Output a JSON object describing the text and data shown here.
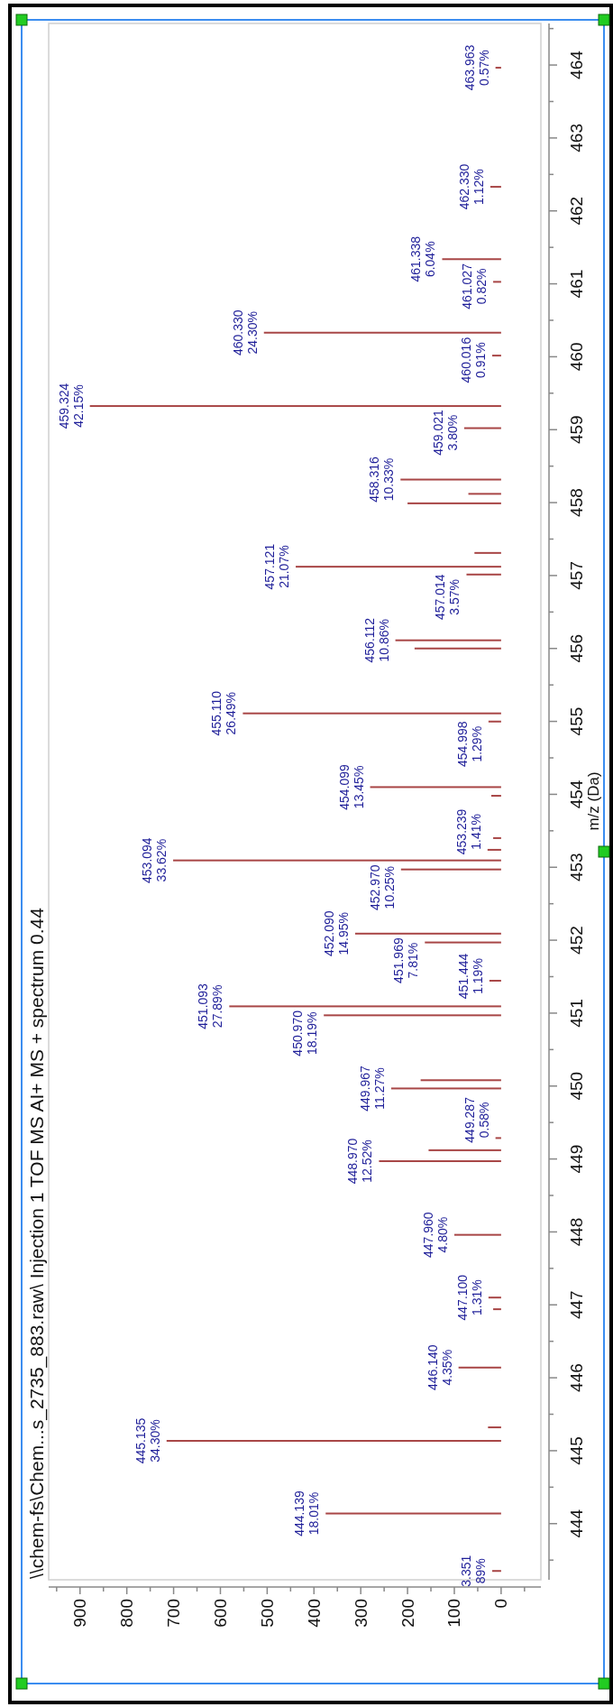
{
  "chart_data": {
    "type": "bar",
    "orientation": "horizontal",
    "title": "\\\\chem-fs\\Chem...s_2735_883.raw\\ Injection 1 TOF MS AI+ MS + spectrum 0.44",
    "ylabel": "m/z (Da)",
    "color": "#a84646",
    "x": [
      443.351,
      444.139,
      445.135,
      445.32,
      446.14,
      446.94,
      447.1,
      447.96,
      448.97,
      449.12,
      449.287,
      449.967,
      450.08,
      450.97,
      451.093,
      451.444,
      451.969,
      452.09,
      452.97,
      453.094,
      453.239,
      453.4,
      453.98,
      454.099,
      454.998,
      455.11,
      456.0,
      456.112,
      457.014,
      457.121,
      457.31,
      457.99,
      458.12,
      458.316,
      459.021,
      459.324,
      460.016,
      460.33,
      461.027,
      461.338,
      462.33,
      463.963
    ],
    "values": [
      19,
      375,
      715,
      28,
      91,
      17,
      27,
      100,
      261,
      155,
      12,
      235,
      172,
      379,
      581,
      25,
      163,
      312,
      214,
      701,
      29,
      17,
      21,
      280,
      27,
      552,
      185,
      226,
      74,
      439,
      57,
      200,
      70,
      215,
      79,
      879,
      19,
      507,
      17,
      126,
      23,
      12
    ],
    "xlim": [
      967,
      -85
    ],
    "ylim": [
      443.23,
      464.57
    ],
    "yticks": [
      {
        "value": 443.5,
        "label": null
      },
      444,
      {
        "value": 444.5,
        "label": null
      },
      445,
      {
        "value": 445.5,
        "label": null
      },
      446,
      {
        "value": 446.5,
        "label": null
      },
      447,
      {
        "value": 447.5,
        "label": null
      },
      448,
      {
        "value": 448.5,
        "label": null
      },
      449,
      {
        "value": 449.5,
        "label": null
      },
      450,
      {
        "value": 450.5,
        "label": null
      },
      451,
      {
        "value": 451.5,
        "label": null
      },
      452,
      {
        "value": 452.5,
        "label": null
      },
      453,
      {
        "value": 453.5,
        "label": null
      },
      454,
      {
        "value": 454.5,
        "label": null
      },
      455,
      {
        "value": 455.5,
        "label": null
      },
      456,
      {
        "value": 456.5,
        "label": null
      },
      457,
      {
        "value": 457.5,
        "label": null
      },
      458,
      {
        "value": 458.5,
        "label": null
      },
      459,
      {
        "value": 459.5,
        "label": null
      },
      460,
      {
        "value": 460.5,
        "label": null
      },
      461,
      {
        "value": 461.5,
        "label": null
      },
      462,
      {
        "value": 462.5,
        "label": null
      },
      463,
      {
        "value": 463.5,
        "label": null
      },
      464,
      {
        "value": 464.5,
        "label": null
      }
    ],
    "xticks": [
      {
        "value": -50,
        "label": null
      },
      0,
      {
        "value": 50,
        "label": null
      },
      100,
      {
        "value": 150,
        "label": null
      },
      200,
      {
        "value": 250,
        "label": null
      },
      300,
      {
        "value": 350,
        "label": null
      },
      400,
      {
        "value": 450,
        "label": null
      },
      500,
      {
        "value": 550,
        "label": null
      },
      600,
      {
        "value": 650,
        "label": null
      },
      700,
      {
        "value": 750,
        "label": null
      },
      800,
      {
        "value": 850,
        "label": null
      },
      900,
      {
        "value": 950,
        "label": null
      }
    ],
    "annotations": [
      {
        "text": "3.351\n89%",
        "y": 443.351,
        "x": 19
      },
      {
        "text": "444.139\n18.01%",
        "y": 444.139,
        "x": 375
      },
      {
        "text": "445.135\n34.30%",
        "y": 445.135,
        "x": 715
      },
      {
        "text": "446.140\n4.35%",
        "y": 446.14,
        "x": 91
      },
      {
        "text": "447.100\n1.31%",
        "y": 447.1,
        "x": 27
      },
      {
        "text": "447.960\n4.80%",
        "y": 447.96,
        "x": 100
      },
      {
        "text": "448.970\n12.52%",
        "y": 448.97,
        "x": 261
      },
      {
        "text": "449.287\n0.58%",
        "y": 449.287,
        "x": 12
      },
      {
        "text": "449.967\n11.27%",
        "y": 449.967,
        "x": 235
      },
      {
        "text": "450.970\n18.19%",
        "y": 450.97,
        "x": 379
      },
      {
        "text": "451.093\n27.89%",
        "y": 451.093,
        "x": 581
      },
      {
        "text": "451.444\n1.19%",
        "y": 451.444,
        "x": 25
      },
      {
        "text": "451.969\n7.81%",
        "y": 451.969,
        "x": 163
      },
      {
        "text": "452.090\n14.95%",
        "y": 452.09,
        "x": 312
      },
      {
        "text": "452.970\n10.25%",
        "y": 452.97,
        "x": 214
      },
      {
        "text": "453.094\n33.62%",
        "y": 453.094,
        "x": 701
      },
      {
        "text": "453.239\n1.41%",
        "y": 453.239,
        "x": 29
      },
      {
        "text": "454.099\n13.45%",
        "y": 454.099,
        "x": 280
      },
      {
        "text": "454.998\n1.29%",
        "y": 454.998,
        "x": 27
      },
      {
        "text": "455.110\n26.49%",
        "y": 455.11,
        "x": 552
      },
      {
        "text": "456.112\n10.86%",
        "y": 456.112,
        "x": 226
      },
      {
        "text": "457.014\n3.57%",
        "y": 457.014,
        "x": 74
      },
      {
        "text": "457.121\n21.07%",
        "y": 457.121,
        "x": 439
      },
      {
        "text": "458.316\n10.33%",
        "y": 458.316,
        "x": 215
      },
      {
        "text": "459.021\n3.80%",
        "y": 459.021,
        "x": 79
      },
      {
        "text": "459.324\n42.15%",
        "y": 459.324,
        "x": 879
      },
      {
        "text": "460.016\n0.91%",
        "y": 460.016,
        "x": 19
      },
      {
        "text": "460.330\n24.30%",
        "y": 460.33,
        "x": 507
      },
      {
        "text": "461.027\n0.82%",
        "y": 461.027,
        "x": 17
      },
      {
        "text": "461.338\n6.04%",
        "y": 461.338,
        "x": 126
      },
      {
        "text": "462.330\n1.12%",
        "y": 462.33,
        "x": 23
      },
      {
        "text": "463.963\n0.57%",
        "y": 463.963,
        "x": 12
      }
    ]
  }
}
